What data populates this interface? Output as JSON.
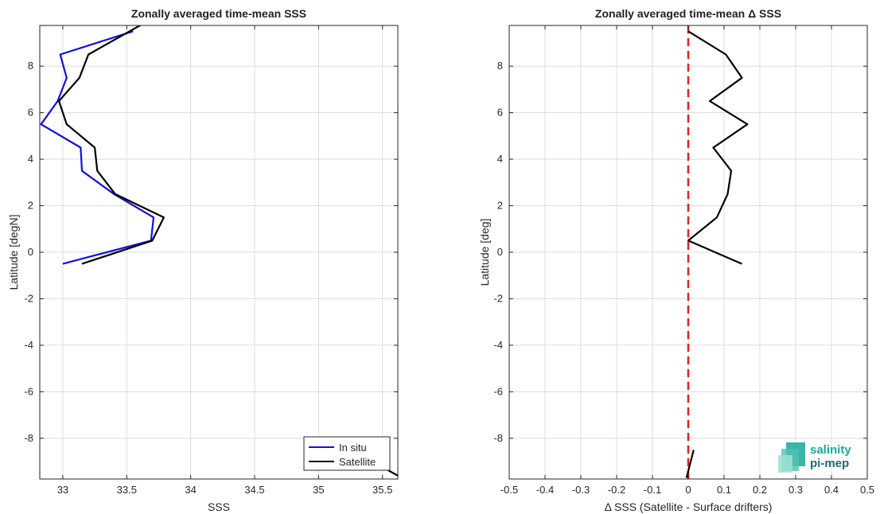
{
  "chart_data": [
    {
      "type": "line",
      "title": "Zonally averaged time-mean SSS",
      "xlabel": "SSS",
      "ylabel": "Latitude [degN]",
      "xlim": [
        32.82,
        35.62
      ],
      "ylim": [
        -9.75,
        9.75
      ],
      "xticks": [
        33,
        33.5,
        34,
        34.5,
        35,
        35.5
      ],
      "xtick_labels": [
        "33",
        "33.5",
        "34",
        "34.5",
        "35",
        "35.5"
      ],
      "yticks": [
        -8,
        -6,
        -4,
        -2,
        0,
        2,
        4,
        6,
        8
      ],
      "ytick_labels": [
        "-8",
        "-6",
        "-4",
        "-2",
        "0",
        "2",
        "4",
        "6",
        "8"
      ],
      "grid": true,
      "legend": "bottom-right",
      "series": [
        {
          "name": "In situ",
          "color": "#1010e0",
          "x": [
            33.0,
            33.69,
            33.71,
            33.4,
            33.15,
            33.14,
            32.83,
            32.96,
            33.03,
            32.98,
            33.55
          ],
          "y": [
            -0.5,
            0.5,
            1.5,
            2.5,
            3.5,
            4.5,
            5.5,
            6.5,
            7.5,
            8.5,
            9.5
          ]
        },
        {
          "name": "Satellite",
          "color": "#000000",
          "x": [
            33.15,
            33.7,
            33.79,
            33.41,
            33.27,
            33.25,
            33.03,
            32.97,
            33.13,
            33.2,
            33.62
          ],
          "y": [
            -0.5,
            0.5,
            1.5,
            2.5,
            3.5,
            4.5,
            5.5,
            6.5,
            7.5,
            8.5,
            9.8
          ]
        },
        {
          "color": "#000000",
          "x": [
            35.52,
            35.65
          ],
          "y": [
            -9.3,
            -9.7
          ]
        }
      ]
    },
    {
      "type": "line",
      "title": "Zonally averaged time-mean Δ SSS",
      "xlabel": "Δ SSS (Satellite - Surface drifters)",
      "ylabel": "Latitude [deg]",
      "xlim": [
        -0.5,
        0.5
      ],
      "ylim": [
        -9.75,
        9.75
      ],
      "xticks": [
        -0.5,
        -0.4,
        -0.3,
        -0.2,
        -0.1,
        0,
        0.1,
        0.2,
        0.3,
        0.4,
        0.5
      ],
      "xtick_labels": [
        "-0.5",
        "-0.4",
        "-0.3",
        "-0.2",
        "-0.1",
        "0",
        "0.1",
        "0.2",
        "0.3",
        "0.4",
        "0.5"
      ],
      "yticks": [
        -8,
        -6,
        -4,
        -2,
        0,
        2,
        4,
        6,
        8
      ],
      "ytick_labels": [
        "-8",
        "-6",
        "-4",
        "-2",
        "0",
        "2",
        "4",
        "6",
        "8"
      ],
      "grid": true,
      "series": [
        {
          "color": "#000000",
          "x": [
            0.15,
            0.0,
            0.08,
            0.11,
            0.12,
            0.07,
            0.165,
            0.06,
            0.15,
            0.105,
            0.0
          ],
          "y": [
            -0.5,
            0.5,
            1.5,
            2.5,
            3.5,
            4.5,
            5.5,
            6.5,
            7.5,
            8.5,
            9.5
          ]
        },
        {
          "color": "#000000",
          "x": [
            -0.005,
            0.015
          ],
          "y": [
            -9.7,
            -8.5
          ]
        }
      ],
      "reference_line": {
        "x": 0,
        "color": "#e02020",
        "style": "dashed"
      }
    }
  ],
  "logo": {
    "line1": "salinity",
    "line2": "pi-mep",
    "color1": "#1aa89a",
    "color2": "#1f6b6b"
  }
}
